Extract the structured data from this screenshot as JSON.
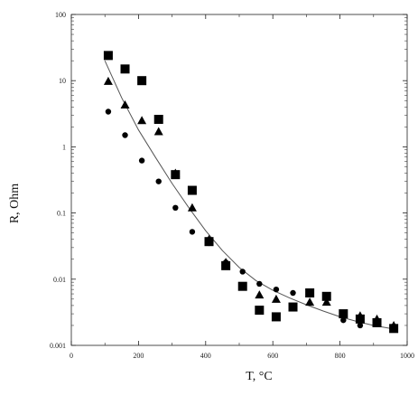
{
  "chart_data": {
    "type": "scatter",
    "title": "",
    "xlabel": "T, °C",
    "ylabel": "R,  Ohm",
    "xlim": [
      0,
      1000
    ],
    "ylim": [
      0.001,
      100
    ],
    "y_scale": "log",
    "grid": false,
    "x_ticks": [
      "0",
      "200",
      "400",
      "600",
      "800",
      "1000"
    ],
    "y_ticks": [
      "0.001",
      "0.01",
      "0.1",
      "1",
      "10",
      "100"
    ],
    "series": [
      {
        "marker": "square",
        "points": [
          {
            "x": 110,
            "y": 24
          },
          {
            "x": 160,
            "y": 15
          },
          {
            "x": 210,
            "y": 10
          },
          {
            "x": 260,
            "y": 2.6
          },
          {
            "x": 310,
            "y": 0.38
          },
          {
            "x": 360,
            "y": 0.22
          },
          {
            "x": 410,
            "y": 0.037
          },
          {
            "x": 460,
            "y": 0.016
          },
          {
            "x": 510,
            "y": 0.0078
          },
          {
            "x": 560,
            "y": 0.0034
          },
          {
            "x": 610,
            "y": 0.0027
          },
          {
            "x": 660,
            "y": 0.0038
          },
          {
            "x": 710,
            "y": 0.0062
          },
          {
            "x": 760,
            "y": 0.0055
          },
          {
            "x": 810,
            "y": 0.003
          },
          {
            "x": 860,
            "y": 0.0025
          },
          {
            "x": 910,
            "y": 0.0022
          },
          {
            "x": 960,
            "y": 0.0018
          }
        ]
      },
      {
        "marker": "triangle",
        "points": [
          {
            "x": 110,
            "y": 9.8
          },
          {
            "x": 160,
            "y": 4.3
          },
          {
            "x": 210,
            "y": 2.5
          },
          {
            "x": 260,
            "y": 1.7
          },
          {
            "x": 310,
            "y": 0.4
          },
          {
            "x": 360,
            "y": 0.12
          },
          {
            "x": 410,
            "y": 0.04
          },
          {
            "x": 460,
            "y": 0.018
          },
          {
            "x": 560,
            "y": 0.0058
          },
          {
            "x": 610,
            "y": 0.005
          },
          {
            "x": 710,
            "y": 0.0045
          },
          {
            "x": 760,
            "y": 0.0045
          },
          {
            "x": 860,
            "y": 0.0028
          },
          {
            "x": 910,
            "y": 0.0025
          },
          {
            "x": 960,
            "y": 0.002
          }
        ]
      },
      {
        "marker": "circle",
        "points": [
          {
            "x": 110,
            "y": 3.4
          },
          {
            "x": 160,
            "y": 1.5
          },
          {
            "x": 210,
            "y": 0.62
          },
          {
            "x": 260,
            "y": 0.3
          },
          {
            "x": 310,
            "y": 0.12
          },
          {
            "x": 360,
            "y": 0.052
          },
          {
            "x": 410,
            "y": 0.035
          },
          {
            "x": 460,
            "y": 0.018
          },
          {
            "x": 510,
            "y": 0.013
          },
          {
            "x": 560,
            "y": 0.0085
          },
          {
            "x": 610,
            "y": 0.007
          },
          {
            "x": 660,
            "y": 0.0062
          },
          {
            "x": 810,
            "y": 0.0024
          },
          {
            "x": 860,
            "y": 0.002
          },
          {
            "x": 910,
            "y": 0.0021
          },
          {
            "x": 960,
            "y": 0.0019
          }
        ]
      }
    ],
    "fit_curve": [
      {
        "x": 100,
        "y": 20
      },
      {
        "x": 150,
        "y": 5.5
      },
      {
        "x": 200,
        "y": 1.8
      },
      {
        "x": 250,
        "y": 0.7
      },
      {
        "x": 300,
        "y": 0.28
      },
      {
        "x": 350,
        "y": 0.12
      },
      {
        "x": 400,
        "y": 0.054
      },
      {
        "x": 450,
        "y": 0.027
      },
      {
        "x": 500,
        "y": 0.015
      },
      {
        "x": 550,
        "y": 0.0095
      },
      {
        "x": 600,
        "y": 0.0068
      },
      {
        "x": 650,
        "y": 0.0052
      },
      {
        "x": 700,
        "y": 0.0041
      },
      {
        "x": 750,
        "y": 0.0033
      },
      {
        "x": 800,
        "y": 0.0027
      },
      {
        "x": 850,
        "y": 0.0023
      },
      {
        "x": 900,
        "y": 0.002
      },
      {
        "x": 950,
        "y": 0.0018
      },
      {
        "x": 970,
        "y": 0.0017
      }
    ],
    "colors": {
      "marker": "#000000",
      "curve": "#555555",
      "axis": "#222222"
    }
  }
}
